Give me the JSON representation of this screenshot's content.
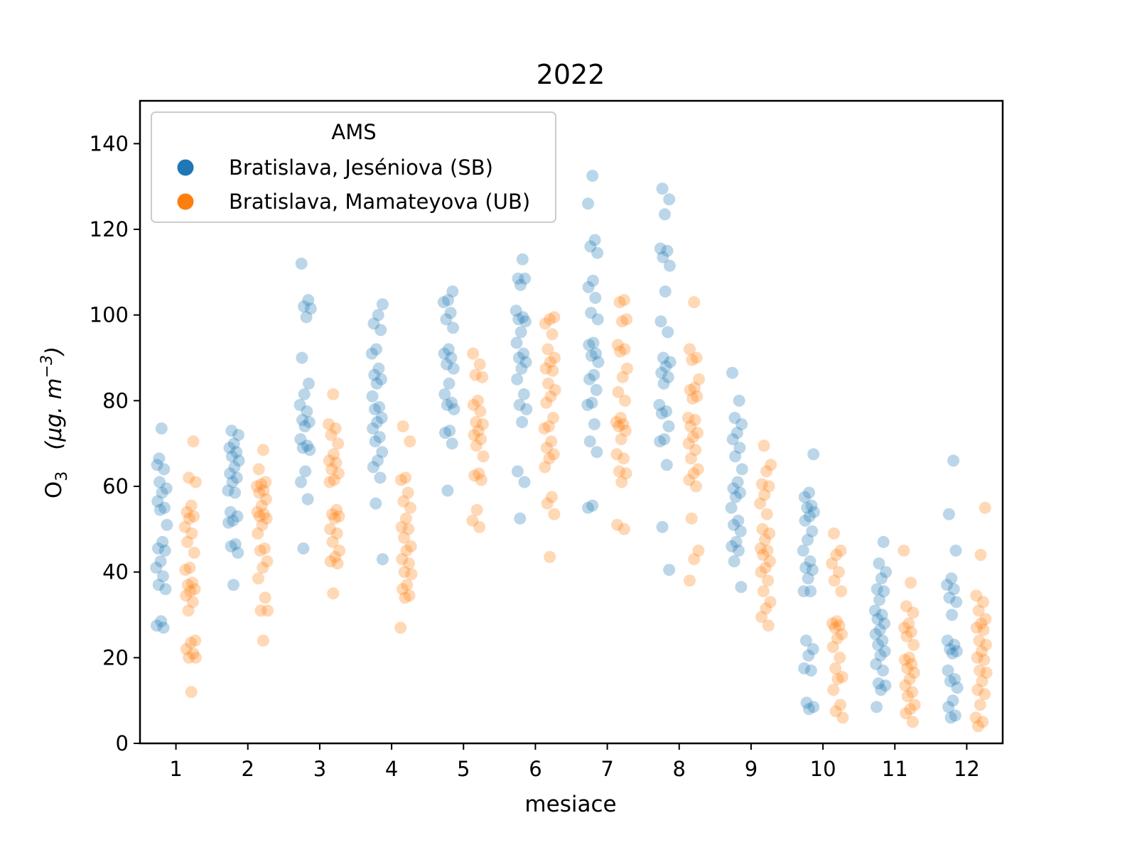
{
  "chart_data": {
    "type": "scatter",
    "title": "2022",
    "xlabel": "mesiace",
    "ylabel_main": "O",
    "ylabel_sub": "3",
    "ylabel_unit": "(μg. m",
    "ylabel_unit_exp": "−3",
    "ylabel_unit_close": ")",
    "xlim": [
      0.5,
      12.5
    ],
    "ylim": [
      0,
      150
    ],
    "xticks": [
      "1",
      "2",
      "3",
      "4",
      "5",
      "6",
      "7",
      "8",
      "9",
      "10",
      "11",
      "12"
    ],
    "yticks": [
      0,
      20,
      40,
      60,
      80,
      100,
      120,
      140
    ],
    "grid": false,
    "legend": {
      "title": "AMS",
      "position": "top-left"
    },
    "series": [
      {
        "name": "Bratislava, Jeséniova (SB)",
        "color": "#1f77b4",
        "offset": -0.2,
        "points_by_month": [
          [
            73.5,
            65,
            64,
            61,
            59.5,
            58.5,
            56.5,
            55,
            54.5,
            51,
            47,
            45.5,
            45,
            42.5,
            41,
            39,
            37,
            36,
            28.5,
            27.5,
            27,
            66.5
          ],
          [
            73,
            72,
            70,
            69,
            68,
            67,
            66,
            64.5,
            63,
            62,
            61,
            59,
            58.5,
            54,
            53,
            52,
            51.5,
            46.5,
            46,
            44.5,
            37
          ],
          [
            112,
            103.5,
            102,
            101.5,
            99.5,
            90,
            84,
            81.5,
            79,
            77.5,
            75.5,
            75,
            74,
            71,
            69.5,
            69,
            68.5,
            63.5,
            61,
            57,
            45.5
          ],
          [
            102.5,
            100,
            98,
            96.5,
            92,
            91,
            87.5,
            86,
            85,
            84,
            81,
            78.5,
            78,
            76,
            75,
            73.5,
            71.5,
            70.5,
            68,
            66,
            64.5,
            62,
            56,
            43
          ],
          [
            105.5,
            103.5,
            103,
            100.5,
            99,
            97,
            92,
            91,
            90,
            88.5,
            87.5,
            84,
            81.5,
            79.5,
            79,
            78,
            73,
            72.5,
            70,
            59
          ],
          [
            113,
            108.5,
            108.5,
            107,
            101,
            99.5,
            99,
            98.5,
            96,
            93.5,
            91,
            90,
            89,
            87.5,
            85,
            81.5,
            79,
            78,
            75,
            63.5,
            61,
            52.5
          ],
          [
            132.5,
            126,
            117.5,
            116,
            114.5,
            108,
            106.5,
            104,
            100.5,
            99,
            93.5,
            93,
            91,
            90.5,
            89,
            86,
            85,
            82.5,
            79.5,
            79,
            74.5,
            70.5,
            68,
            55.5,
            55
          ],
          [
            129.5,
            127,
            123.5,
            115.5,
            115,
            113.5,
            111.5,
            105.5,
            98.5,
            96,
            90,
            89,
            88,
            86.5,
            85.5,
            84,
            79,
            77.5,
            77,
            74,
            71,
            70.5,
            65,
            50.5,
            40.5
          ],
          [
            86.5,
            80,
            76,
            74.5,
            72.5,
            71,
            69,
            67,
            64,
            61,
            59.5,
            58.5,
            57.5,
            55,
            52,
            51,
            49.5,
            47,
            46,
            45,
            42.5,
            36.5
          ],
          [
            67.5,
            58.5,
            57.5,
            55.5,
            55,
            54,
            53,
            52,
            49.5,
            47.5,
            45,
            42.5,
            41,
            40.5,
            38.5,
            35.5,
            35.5,
            24,
            22,
            20.5,
            17.5,
            17,
            9.5,
            8.5,
            8
          ],
          [
            47,
            42,
            40,
            38.5,
            36,
            35.5,
            33.5,
            31,
            30,
            29,
            28,
            26.5,
            25.5,
            24,
            23,
            21.5,
            20.5,
            18.5,
            17,
            14,
            13.5,
            12.5,
            8.5
          ],
          [
            66,
            53.5,
            45,
            38.5,
            37,
            36,
            34,
            33,
            30,
            24,
            23,
            22,
            21.5,
            21,
            17,
            15,
            14.5,
            13,
            10,
            8.5,
            6.5,
            6
          ]
        ]
      },
      {
        "name": "Bratislava, Mamateyova (UB)",
        "color": "#ff7f0e",
        "offset": 0.2,
        "points_by_month": [
          [
            70.5,
            62,
            61,
            55.5,
            54,
            53,
            52.5,
            50.5,
            49,
            47,
            44.5,
            41,
            40.5,
            37.5,
            37,
            36,
            35.5,
            34.5,
            33,
            31,
            24,
            23.5,
            22,
            21,
            20,
            20,
            12
          ],
          [
            68.5,
            64,
            61,
            60.5,
            60,
            59,
            58.5,
            57,
            55.5,
            54,
            53.5,
            53,
            52.5,
            51,
            49,
            45.5,
            45,
            42.5,
            41,
            38.5,
            34,
            31,
            31,
            24
          ],
          [
            81.5,
            74.5,
            73.5,
            72,
            70,
            67.5,
            66,
            65.5,
            64,
            63,
            61.5,
            61,
            54.5,
            53.5,
            53,
            52.5,
            50,
            49,
            47,
            45,
            43.5,
            42.5,
            42,
            35
          ],
          [
            74,
            70.5,
            62,
            61.5,
            58.5,
            56.5,
            55,
            52.5,
            50.5,
            50,
            48,
            46,
            45,
            43,
            42,
            40,
            39.5,
            37,
            36,
            34.5,
            34,
            27
          ],
          [
            91,
            88.5,
            86,
            85.5,
            80,
            79,
            77.5,
            75,
            74.5,
            73,
            72,
            71,
            69.5,
            67,
            63,
            62.5,
            61.5,
            54.5,
            52,
            50.5
          ],
          [
            99.5,
            99,
            98,
            95.5,
            92,
            90,
            89,
            87.5,
            87,
            84,
            82.5,
            81,
            79.5,
            76,
            74,
            73.5,
            70.5,
            69,
            67.5,
            66.5,
            64.5,
            57.5,
            56,
            53.5,
            43.5
          ],
          [
            103.5,
            103,
            99,
            98.5,
            93,
            92,
            91.5,
            87.5,
            85.5,
            82,
            80,
            76,
            75,
            74.5,
            74,
            73,
            71,
            67.5,
            66.5,
            63.5,
            63,
            61,
            51,
            50
          ],
          [
            103,
            92,
            90,
            89.5,
            85,
            83,
            82.5,
            81,
            80.5,
            76,
            75.5,
            74,
            72.5,
            71.5,
            70,
            68.5,
            66.5,
            64,
            63,
            61.5,
            60,
            52.5,
            45,
            43,
            38
          ],
          [
            69.5,
            65,
            63.5,
            60.5,
            60,
            58,
            56,
            53.5,
            50,
            49,
            47.5,
            45.5,
            45,
            44,
            42.5,
            41,
            40,
            38,
            35.5,
            33,
            31.5,
            29.5,
            27.5
          ],
          [
            49,
            45,
            44,
            42,
            40,
            38,
            35.5,
            28.5,
            28,
            27.5,
            27,
            25.5,
            24.5,
            22.5,
            20,
            17.5,
            15.5,
            15,
            12.5,
            9,
            7.5,
            6
          ],
          [
            45,
            37.5,
            32,
            30.5,
            28,
            27,
            26,
            25,
            23,
            20,
            19.5,
            18.5,
            17.5,
            16.5,
            15,
            13.5,
            12,
            11,
            9,
            8,
            7,
            5
          ],
          [
            55,
            44,
            34.5,
            33,
            31,
            29,
            28,
            27,
            26.5,
            24,
            23,
            21.5,
            20,
            19.5,
            17,
            16.5,
            14.5,
            12.5,
            11.5,
            9,
            6,
            5,
            4
          ]
        ]
      }
    ]
  }
}
